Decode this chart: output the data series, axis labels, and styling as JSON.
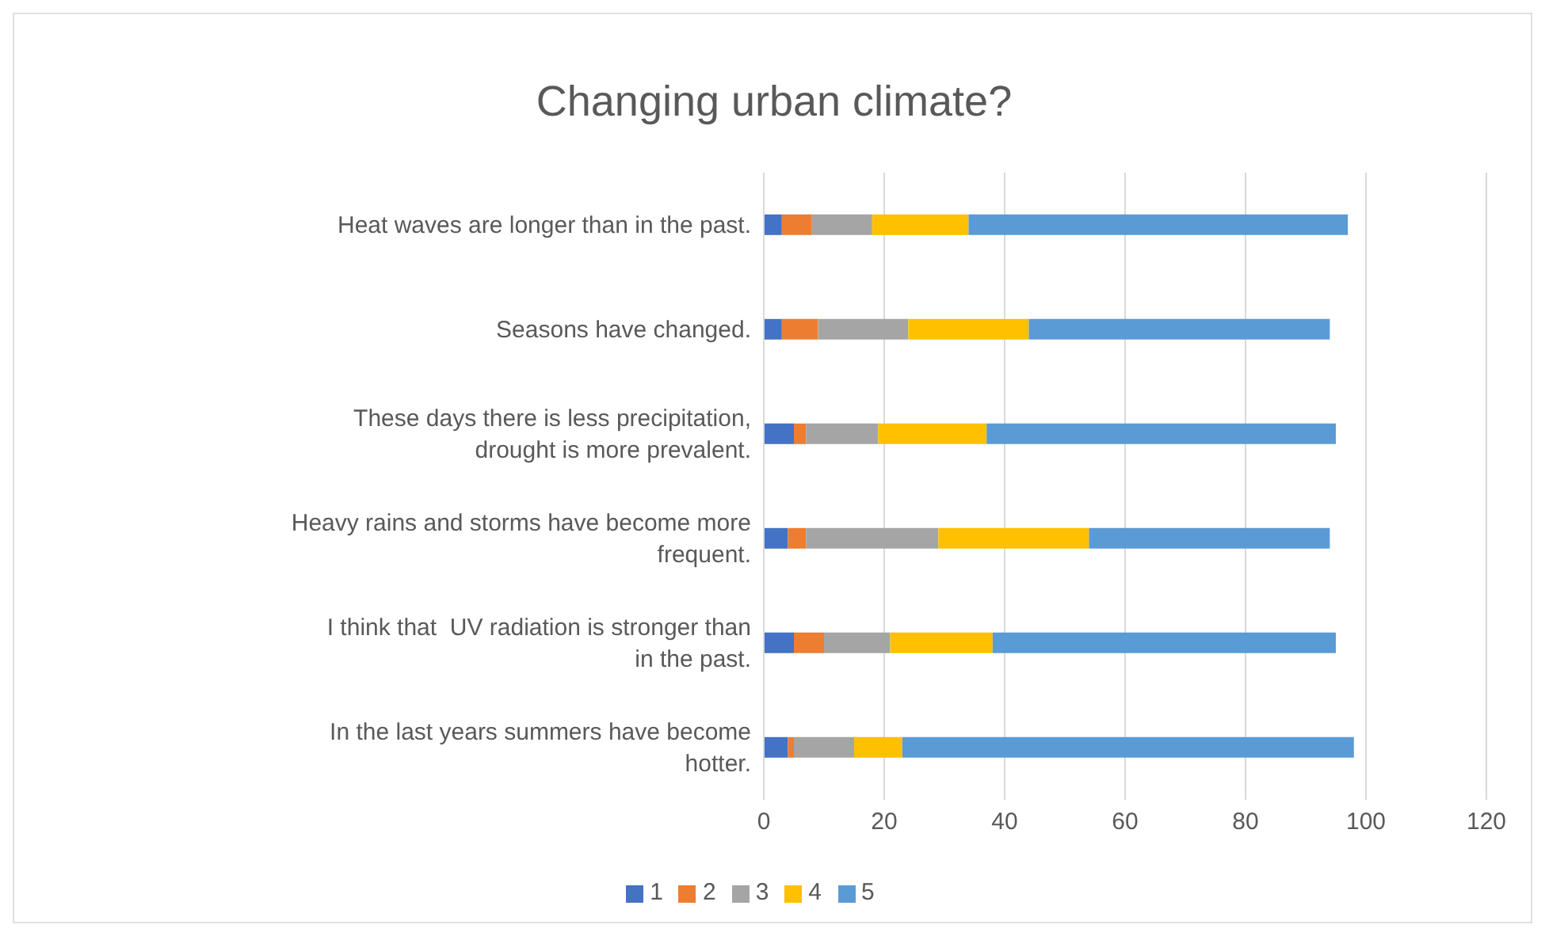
{
  "chart_data": {
    "type": "bar",
    "title": "Changing urban climate?",
    "orientation": "horizontal",
    "stacked": true,
    "categories": [
      "Heat waves are longer than in the past.",
      "Seasons have changed.",
      "These days there is less precipitation, drought is more prevalent.",
      "Heavy rains and storms have become more frequent.",
      "I think that  UV radiation is stronger than in the past.",
      "In the last years summers have become hotter."
    ],
    "series": [
      {
        "name": "1",
        "color": "#4472c4",
        "values": [
          3,
          3,
          5,
          4,
          5,
          4
        ]
      },
      {
        "name": "2",
        "color": "#ed7d31",
        "values": [
          5,
          6,
          2,
          3,
          5,
          1
        ]
      },
      {
        "name": "3",
        "color": "#a5a5a5",
        "values": [
          10,
          15,
          12,
          22,
          11,
          10
        ]
      },
      {
        "name": "4",
        "color": "#ffc000",
        "values": [
          16,
          20,
          18,
          25,
          17,
          8
        ]
      },
      {
        "name": "5",
        "color": "#5b9bd5",
        "values": [
          63,
          50,
          58,
          40,
          57,
          75
        ]
      }
    ],
    "xlim": [
      0,
      120
    ],
    "xticks": [
      0,
      20,
      40,
      60,
      80,
      100,
      120
    ],
    "grid": "x",
    "legend": "bottom"
  }
}
